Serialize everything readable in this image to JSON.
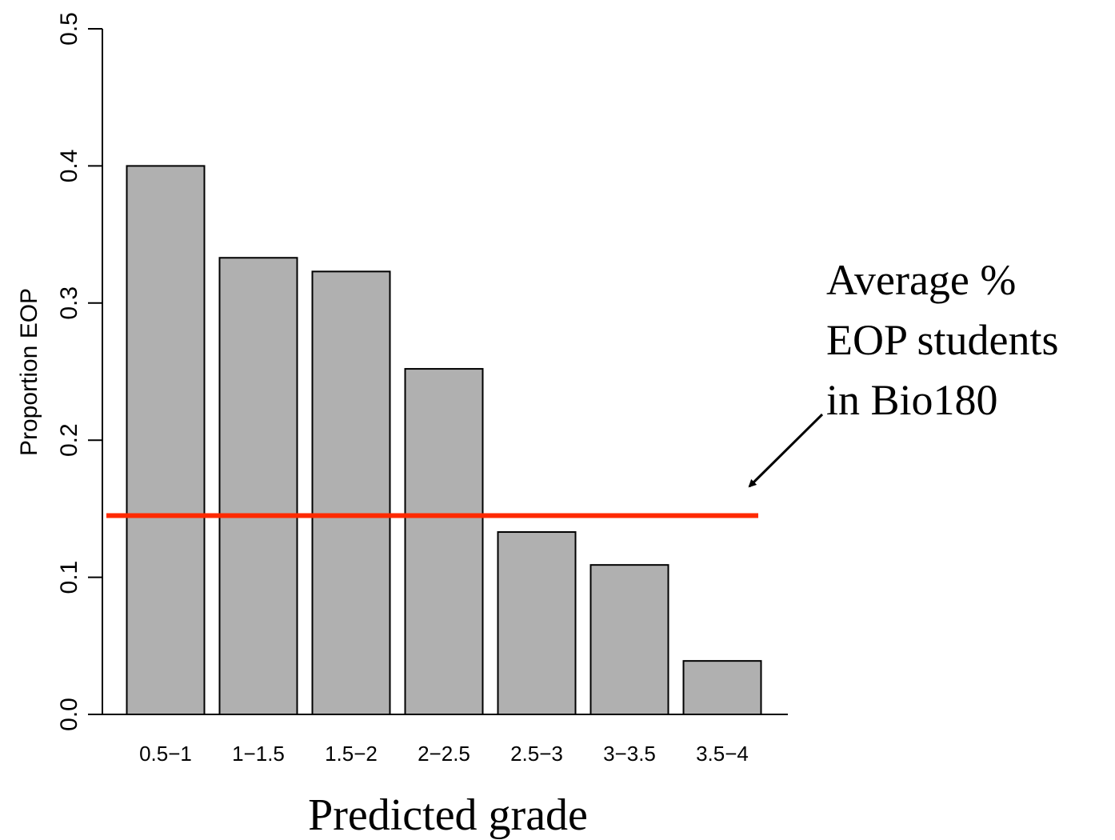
{
  "chart_data": {
    "type": "bar",
    "y_label": "Proportion EOP",
    "x_label": "Predicted grade",
    "categories": [
      "0.5−1",
      "1−1.5",
      "1.5−2",
      "2−2.5",
      "2.5−3",
      "3−3.5",
      "3.5−4"
    ],
    "values": [
      0.4,
      0.333,
      0.323,
      0.252,
      0.133,
      0.109,
      0.039
    ],
    "color": "#b0b0b0",
    "ylim": [
      0,
      0.5
    ],
    "yticks": [
      {
        "value": 0,
        "label": "0.0"
      },
      0.1,
      0.2,
      0.3,
      0.4,
      0.5
    ],
    "reference_line": {
      "value": 0.145,
      "color": "#ff2a00"
    },
    "annotation": [
      "Average %",
      "EOP students",
      "in Bio180"
    ]
  }
}
